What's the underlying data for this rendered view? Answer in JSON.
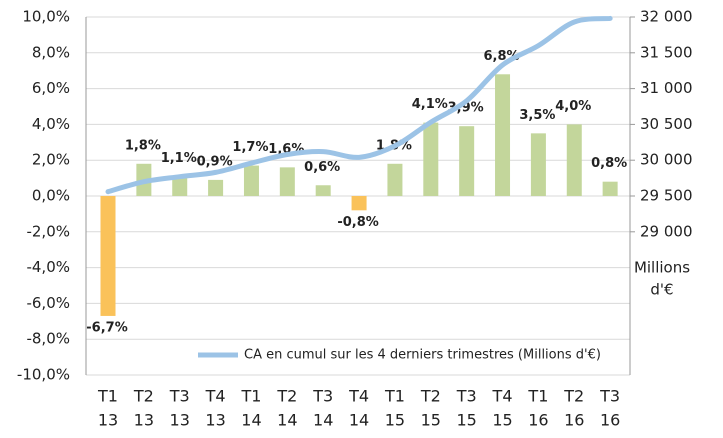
{
  "chart_data": {
    "type": "bar_line",
    "categories": [
      [
        "T1",
        "13"
      ],
      [
        "T2",
        "13"
      ],
      [
        "T3",
        "13"
      ],
      [
        "T4",
        "13"
      ],
      [
        "T1",
        "14"
      ],
      [
        "T2",
        "14"
      ],
      [
        "T3",
        "14"
      ],
      [
        "T4",
        "14"
      ],
      [
        "T1",
        "15"
      ],
      [
        "T2",
        "15"
      ],
      [
        "T3",
        "15"
      ],
      [
        "T4",
        "15"
      ],
      [
        "T1",
        "16"
      ],
      [
        "T2",
        "16"
      ],
      [
        "T3",
        "16"
      ]
    ],
    "series": [
      {
        "type": "bar",
        "positive_color": "#c3d69b",
        "negative_color": "#fac25a",
        "values": [
          -6.7,
          1.8,
          1.1,
          0.9,
          1.7,
          1.6,
          0.6,
          -0.8,
          1.8,
          4.1,
          3.9,
          6.8,
          3.5,
          4.0,
          0.8
        ],
        "value_labels": [
          "-6,7%",
          "1,8%",
          "1,1%",
          "0,9%",
          "1,7%",
          "1,6%",
          "0,6%",
          "-0,8%",
          "1,8%",
          "4,1%",
          "3,9%",
          "6,8%",
          "3,5%",
          "4,0%",
          "0,8%"
        ]
      },
      {
        "type": "line",
        "axis": "y2",
        "name": "CA en cumul sur les 4 derniers trimestres (Millions d'€)",
        "color": "#9cc3e6",
        "values": [
          29560,
          29700,
          29770,
          29830,
          29960,
          30080,
          30120,
          30040,
          30200,
          30530,
          30830,
          31330,
          31600,
          31930,
          31980
        ]
      }
    ],
    "ylim": [
      -10,
      10
    ],
    "yticks": [
      {
        "value": -10,
        "label": "-10,0%"
      },
      {
        "value": -8,
        "label": "-8,0%"
      },
      {
        "value": -6,
        "label": "-6,0%"
      },
      {
        "value": -4,
        "label": "-4,0%"
      },
      {
        "value": -2,
        "label": "-2,0%"
      },
      {
        "value": 0,
        "label": "0,0%"
      },
      {
        "value": 2,
        "label": "2,0%"
      },
      {
        "value": 4,
        "label": "4,0%"
      },
      {
        "value": 6,
        "label": "6,0%"
      },
      {
        "value": 8,
        "label": "8,0%"
      },
      {
        "value": 10,
        "label": "10,0%"
      }
    ],
    "y2lim": [
      27000,
      32000
    ],
    "y2ticks": [
      {
        "value": 29000,
        "label": "29 000"
      },
      {
        "value": 29500,
        "label": "29 500"
      },
      {
        "value": 30000,
        "label": "30 000"
      },
      {
        "value": 30500,
        "label": "30 500"
      },
      {
        "value": 31000,
        "label": "31 000"
      },
      {
        "value": 31500,
        "label": "31 500"
      },
      {
        "value": 32000,
        "label": "32 000"
      }
    ],
    "y2label": [
      "Millions",
      "d'€"
    ],
    "y2color": "#2aa3c9",
    "grid": true,
    "legend": "lower right"
  }
}
